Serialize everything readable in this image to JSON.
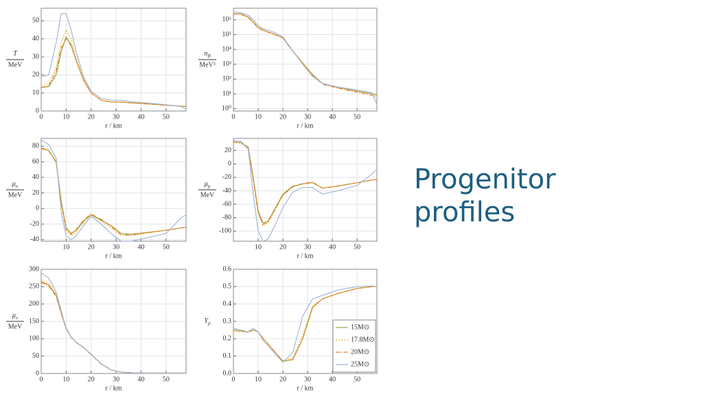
{
  "slide_title": "Progenitor profiles",
  "chart_data": [
    {
      "type": "line",
      "ylabel": "T",
      "ylabel_unit": "MeV",
      "xlabel": "r / km",
      "x": [
        0,
        3,
        6,
        8,
        10,
        12,
        14,
        17,
        20,
        24,
        28,
        32,
        36,
        42,
        50,
        56,
        58
      ],
      "xlim": [
        0,
        58
      ],
      "xticks": [
        0,
        10,
        20,
        30,
        40,
        50
      ],
      "ylim": [
        0,
        57
      ],
      "yticks": [
        0,
        10,
        20,
        30,
        40,
        50
      ],
      "grid": true,
      "series": [
        {
          "color": "#9aa64a",
          "dash": "solid",
          "values": [
            13,
            13.5,
            20,
            33,
            41,
            37,
            28,
            17,
            10,
            6,
            5,
            5,
            4.5,
            4,
            3.2,
            2.7,
            2.5
          ]
        },
        {
          "color": "#e8b73a",
          "dash": "dotted",
          "values": [
            14,
            15,
            24,
            38,
            45,
            40,
            30,
            18,
            10,
            6,
            5,
            5,
            4.6,
            4,
            3.3,
            2.8,
            2.6
          ]
        },
        {
          "color": "#e07b28",
          "dash": "dashdot",
          "values": [
            13,
            14,
            22,
            35,
            40,
            36,
            28,
            17,
            10,
            6,
            5,
            5,
            4.5,
            4,
            3.2,
            2.7,
            2.5
          ]
        },
        {
          "color": "#a3b7d8",
          "dash": "solid",
          "values": [
            19,
            20,
            38,
            54,
            54,
            45,
            33,
            19,
            11,
            7,
            6,
            6,
            5.2,
            4.5,
            3.5,
            2.5,
            1
          ]
        }
      ]
    },
    {
      "type": "line",
      "ylabel": "n",
      "ylabel_sub": "B",
      "ylabel_unit": "MeV³",
      "xlabel": "r / km",
      "log_y": true,
      "x": [
        0,
        3,
        6,
        8,
        10,
        12,
        14,
        17,
        20,
        24,
        28,
        32,
        36,
        42,
        50,
        56,
        58
      ],
      "xlim": [
        0,
        58
      ],
      "xticks": [
        0,
        10,
        20,
        30,
        40,
        50
      ],
      "ylim": [
        0.7,
        6000000
      ],
      "yticks": [
        {
          "value": 1,
          "label": "10⁰"
        },
        {
          "value": 10,
          "label": "10¹"
        },
        {
          "value": 100,
          "label": "10²"
        },
        {
          "value": 1000,
          "label": "10³"
        },
        {
          "value": 10000,
          "label": "10⁴"
        },
        {
          "value": 100000,
          "label": "10⁵"
        },
        {
          "value": 1000000,
          "label": "10⁶"
        }
      ],
      "grid": true,
      "series": [
        {
          "color": "#9aa64a",
          "dash": "solid",
          "values": [
            2500000,
            2500000,
            1500000,
            700000,
            300000,
            200000,
            150000,
            100000,
            60000,
            8000,
            1200,
            200,
            50,
            28,
            15,
            10,
            8
          ]
        },
        {
          "color": "#e8b73a",
          "dash": "dotted",
          "values": [
            2700000,
            2600000,
            1600000,
            750000,
            320000,
            210000,
            155000,
            100000,
            62000,
            8500,
            1250,
            210,
            52,
            29,
            16,
            11,
            9
          ]
        },
        {
          "color": "#e07b28",
          "dash": "dashdot",
          "values": [
            2500000,
            2400000,
            1400000,
            650000,
            280000,
            190000,
            145000,
            95000,
            58000,
            7500,
            1100,
            180,
            45,
            25,
            13,
            8,
            6
          ]
        },
        {
          "color": "#a3b7d8",
          "dash": "solid",
          "values": [
            3500000,
            3000000,
            2000000,
            1000000,
            400000,
            250000,
            200000,
            130000,
            70000,
            8000,
            1000,
            150,
            50,
            30,
            18,
            12,
            2
          ]
        }
      ]
    },
    {
      "type": "line",
      "ylabel": "μ",
      "ylabel_sub": "n",
      "ylabel_unit": "MeV",
      "xlabel": "r / km",
      "x": [
        0,
        3,
        6,
        8,
        10,
        12,
        14,
        17,
        20,
        24,
        28,
        32,
        36,
        42,
        50,
        56,
        58
      ],
      "xlim": [
        0,
        58
      ],
      "xticks": [
        10,
        20,
        30,
        40,
        50
      ],
      "ylim": [
        -42,
        90
      ],
      "yticks": [
        -40,
        -20,
        0,
        20,
        40,
        60,
        80
      ],
      "grid": true,
      "series": [
        {
          "color": "#9aa64a",
          "dash": "solid",
          "values": [
            78,
            75,
            60,
            10,
            -25,
            -32,
            -28,
            -16,
            -8,
            -15,
            -22,
            -32,
            -33,
            -31,
            -28,
            -25,
            -24
          ]
        },
        {
          "color": "#e8b73a",
          "dash": "dotted",
          "values": [
            78,
            75,
            58,
            5,
            -28,
            -35,
            -30,
            -18,
            -9,
            -16,
            -25,
            -34,
            -35,
            -32,
            -28,
            -25,
            -24
          ]
        },
        {
          "color": "#e07b28",
          "dash": "dashdot",
          "values": [
            77,
            74,
            60,
            8,
            -27,
            -33,
            -27,
            -15,
            -7,
            -14,
            -23,
            -34,
            -34,
            -31,
            -28,
            -25,
            -24
          ]
        },
        {
          "color": "#a3b7d8",
          "dash": "solid",
          "values": [
            88,
            82,
            65,
            -5,
            -35,
            -40,
            -35,
            -22,
            -10,
            -20,
            -32,
            -42,
            -42,
            -38,
            -32,
            -12,
            -8
          ]
        }
      ]
    },
    {
      "type": "line",
      "ylabel": "μ",
      "ylabel_sub": "p",
      "ylabel_unit": "MeV",
      "xlabel": "r / km",
      "x": [
        0,
        3,
        6,
        8,
        10,
        12,
        14,
        17,
        20,
        24,
        28,
        32,
        36,
        42,
        50,
        56,
        58
      ],
      "xlim": [
        0,
        58
      ],
      "xticks": [
        10,
        20,
        30,
        40,
        50
      ],
      "ylim": [
        -115,
        38
      ],
      "yticks": [
        -100,
        -80,
        -60,
        -40,
        -20,
        0,
        20
      ],
      "grid": true,
      "series": [
        {
          "color": "#9aa64a",
          "dash": "solid",
          "values": [
            33,
            32,
            25,
            -20,
            -70,
            -88,
            -85,
            -65,
            -45,
            -33,
            -30,
            -28,
            -36,
            -33,
            -28,
            -24,
            -23
          ]
        },
        {
          "color": "#e8b73a",
          "dash": "dotted",
          "values": [
            32,
            31,
            22,
            -25,
            -75,
            -92,
            -88,
            -68,
            -47,
            -34,
            -30,
            -28,
            -36,
            -33,
            -28,
            -24,
            -23
          ]
        },
        {
          "color": "#e07b28",
          "dash": "dashdot",
          "values": [
            33,
            32,
            24,
            -22,
            -72,
            -90,
            -86,
            -66,
            -46,
            -34,
            -29,
            -27,
            -36,
            -33,
            -28,
            -24,
            -23
          ]
        },
        {
          "color": "#a3b7d8",
          "dash": "solid",
          "values": [
            35,
            34,
            22,
            -45,
            -100,
            -115,
            -112,
            -90,
            -65,
            -42,
            -35,
            -35,
            -45,
            -40,
            -32,
            -15,
            -8
          ]
        }
      ]
    },
    {
      "type": "line",
      "ylabel": "μ",
      "ylabel_sub": "e",
      "ylabel_unit": "MeV",
      "xlabel": "r / km",
      "x": [
        0,
        3,
        6,
        8,
        10,
        12,
        14,
        17,
        20,
        24,
        28,
        32,
        36,
        42,
        50,
        56,
        58
      ],
      "xlim": [
        0,
        58
      ],
      "xticks": [
        0,
        10,
        20,
        30,
        40,
        50
      ],
      "ylim": [
        0,
        300
      ],
      "yticks": [
        0,
        50,
        100,
        150,
        200,
        250,
        300
      ],
      "grid": true,
      "series": [
        {
          "color": "#9aa64a",
          "dash": "solid",
          "values": [
            265,
            255,
            225,
            175,
            130,
            105,
            90,
            75,
            55,
            28,
            10,
            4,
            2,
            1,
            1,
            1,
            1
          ]
        },
        {
          "color": "#e8b73a",
          "dash": "dotted",
          "values": [
            270,
            260,
            230,
            180,
            132,
            106,
            90,
            75,
            56,
            28,
            10,
            4,
            2,
            1,
            1,
            1,
            1
          ]
        },
        {
          "color": "#e07b28",
          "dash": "dashdot",
          "values": [
            262,
            252,
            222,
            172,
            128,
            104,
            89,
            74,
            54,
            27,
            10,
            4,
            2,
            1,
            1,
            1,
            1
          ]
        },
        {
          "color": "#a3b7d8",
          "dash": "solid",
          "values": [
            290,
            275,
            235,
            180,
            130,
            105,
            90,
            75,
            55,
            28,
            10,
            4,
            2,
            1,
            1,
            1,
            1
          ]
        }
      ]
    },
    {
      "type": "line",
      "ylabel": "Y",
      "ylabel_sub": "p",
      "xlabel": "r / km",
      "legend": "lower right",
      "x": [
        0,
        3,
        6,
        8,
        10,
        12,
        14,
        17,
        20,
        24,
        28,
        32,
        36,
        42,
        50,
        56,
        58
      ],
      "xlim": [
        0,
        58
      ],
      "xticks": [
        0,
        10,
        20,
        30,
        40,
        50
      ],
      "ylim": [
        0,
        0.6
      ],
      "yticks": [
        {
          "value": 0,
          "label": "0.0"
        },
        0.1,
        0.2,
        0.3,
        0.4,
        0.5,
        0.6
      ],
      "grid": true,
      "series": [
        {
          "name": "15M⊙",
          "color": "#9aa64a",
          "dash": "solid",
          "values": [
            0.25,
            0.245,
            0.24,
            0.25,
            0.24,
            0.2,
            0.17,
            0.12,
            0.07,
            0.08,
            0.2,
            0.38,
            0.43,
            0.46,
            0.49,
            0.5,
            0.5
          ]
        },
        {
          "name": "17.8M⊙",
          "color": "#e8b73a",
          "dash": "dotted",
          "values": [
            0.24,
            0.24,
            0.235,
            0.25,
            0.24,
            0.2,
            0.17,
            0.12,
            0.075,
            0.09,
            0.22,
            0.39,
            0.43,
            0.46,
            0.49,
            0.5,
            0.5
          ]
        },
        {
          "name": "20M⊙",
          "color": "#e07b28",
          "dash": "dashdot",
          "values": [
            0.25,
            0.245,
            0.24,
            0.25,
            0.24,
            0.2,
            0.17,
            0.12,
            0.07,
            0.08,
            0.2,
            0.38,
            0.43,
            0.46,
            0.49,
            0.5,
            0.5
          ]
        },
        {
          "name": "25M⊙",
          "color": "#a3b7d8",
          "dash": "solid",
          "values": [
            0.26,
            0.25,
            0.24,
            0.26,
            0.24,
            0.19,
            0.16,
            0.11,
            0.065,
            0.12,
            0.33,
            0.43,
            0.45,
            0.48,
            0.5,
            0.505,
            0.5
          ]
        }
      ]
    }
  ]
}
